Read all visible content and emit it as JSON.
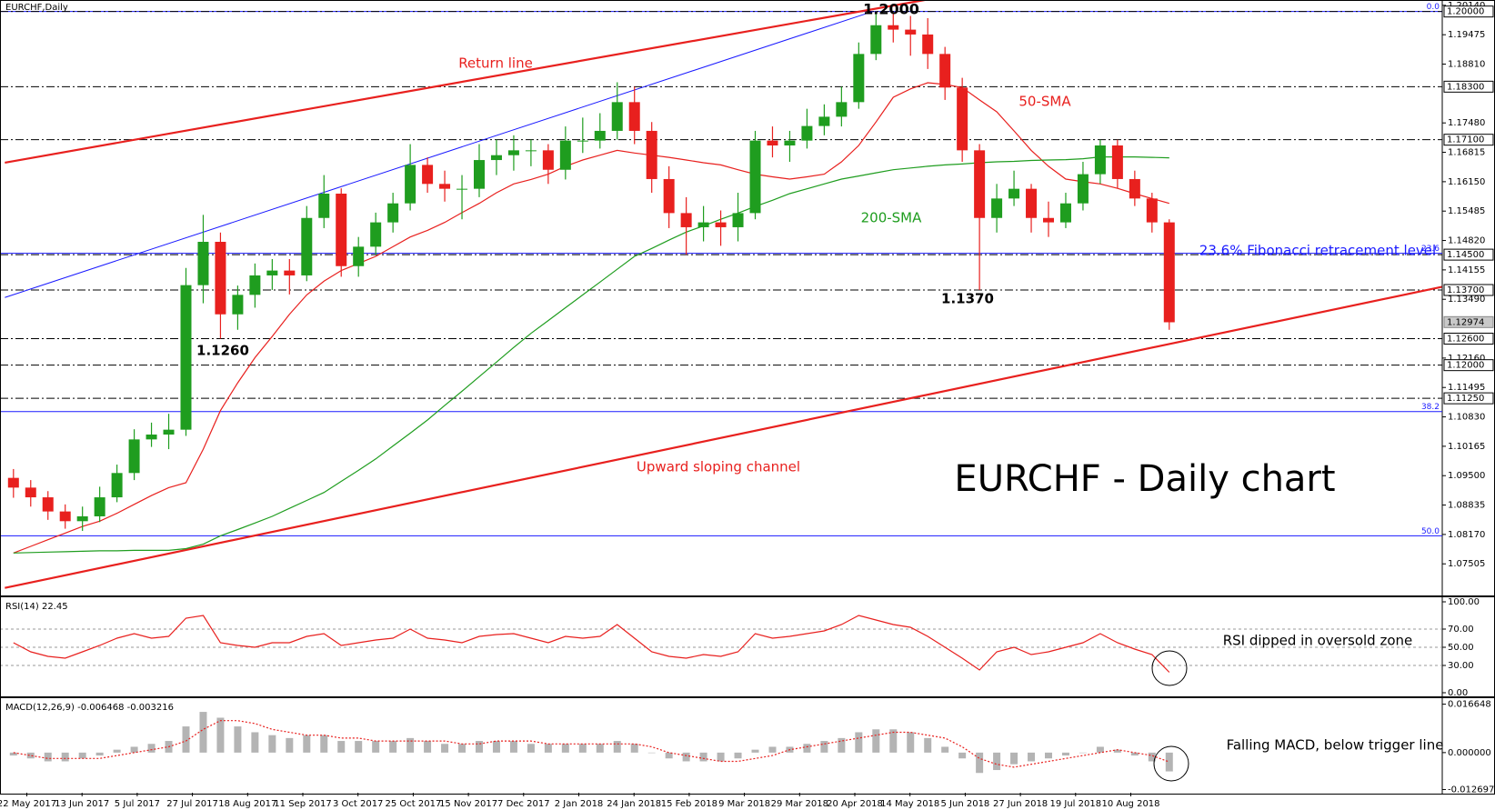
{
  "chart_data": [
    {
      "type": "candlestick",
      "title": "EURCHF,Daily",
      "up_color": "#1f9d1f",
      "down_color": "#e8201e",
      "candles": [
        [
          1.0945,
          1.0965,
          1.09,
          1.0923
        ],
        [
          1.0923,
          1.094,
          1.088,
          1.0901
        ],
        [
          1.0901,
          1.0915,
          1.085,
          1.0869
        ],
        [
          1.0869,
          1.0885,
          1.083,
          1.0847
        ],
        [
          1.0847,
          1.088,
          1.0825,
          1.0858
        ],
        [
          1.0858,
          1.0925,
          1.0845,
          1.0901
        ],
        [
          1.0901,
          1.0975,
          1.089,
          1.0956
        ],
        [
          1.0956,
          1.1055,
          1.094,
          1.1032
        ],
        [
          1.1032,
          1.107,
          1.1015,
          1.1043
        ],
        [
          1.1043,
          1.109,
          1.101,
          1.1054
        ],
        [
          1.1054,
          1.142,
          1.104,
          1.1381
        ],
        [
          1.1381,
          1.154,
          1.134,
          1.1479
        ],
        [
          1.1479,
          1.15,
          1.126,
          1.1315
        ],
        [
          1.1315,
          1.138,
          1.128,
          1.1359
        ],
        [
          1.1359,
          1.143,
          1.133,
          1.1403
        ],
        [
          1.1403,
          1.144,
          1.137,
          1.1414
        ],
        [
          1.1414,
          1.144,
          1.136,
          1.1403
        ],
        [
          1.1403,
          1.156,
          1.139,
          1.1533
        ],
        [
          1.1533,
          1.163,
          1.151,
          1.1588
        ],
        [
          1.1588,
          1.16,
          1.14,
          1.1424
        ],
        [
          1.1424,
          1.149,
          1.14,
          1.1468
        ],
        [
          1.1468,
          1.1545,
          1.145,
          1.1523
        ],
        [
          1.1523,
          1.159,
          1.15,
          1.1566
        ],
        [
          1.1566,
          1.17,
          1.155,
          1.1653
        ],
        [
          1.1653,
          1.167,
          1.159,
          1.161
        ],
        [
          1.161,
          1.164,
          1.157,
          1.1599
        ],
        [
          1.1599,
          1.163,
          1.153,
          1.1599
        ],
        [
          1.1599,
          1.17,
          1.158,
          1.1664
        ],
        [
          1.1664,
          1.171,
          1.163,
          1.1675
        ],
        [
          1.1675,
          1.172,
          1.164,
          1.1686
        ],
        [
          1.1686,
          1.171,
          1.165,
          1.1686
        ],
        [
          1.1686,
          1.17,
          1.161,
          1.1642
        ],
        [
          1.1642,
          1.174,
          1.162,
          1.1708
        ],
        [
          1.1708,
          1.176,
          1.168,
          1.1708
        ],
        [
          1.1708,
          1.177,
          1.169,
          1.173
        ],
        [
          1.173,
          1.184,
          1.171,
          1.1795
        ],
        [
          1.1795,
          1.183,
          1.17,
          1.173
        ],
        [
          1.173,
          1.175,
          1.159,
          1.1621
        ],
        [
          1.1621,
          1.165,
          1.151,
          1.1544
        ],
        [
          1.1544,
          1.158,
          1.145,
          1.1512
        ],
        [
          1.1512,
          1.156,
          1.148,
          1.1523
        ],
        [
          1.1523,
          1.155,
          1.147,
          1.1512
        ],
        [
          1.1512,
          1.159,
          1.148,
          1.1544
        ],
        [
          1.1544,
          1.173,
          1.153,
          1.1708
        ],
        [
          1.1708,
          1.174,
          1.167,
          1.1697
        ],
        [
          1.1697,
          1.173,
          1.166,
          1.1708
        ],
        [
          1.1708,
          1.178,
          1.169,
          1.1741
        ],
        [
          1.1741,
          1.179,
          1.172,
          1.1762
        ],
        [
          1.1762,
          1.183,
          1.174,
          1.1795
        ],
        [
          1.1795,
          1.193,
          1.178,
          1.1904
        ],
        [
          1.1904,
          1.2,
          1.189,
          1.1969
        ],
        [
          1.1969,
          1.1995,
          1.193,
          1.1959
        ],
        [
          1.1959,
          1.199,
          1.19,
          1.1948
        ],
        [
          1.1948,
          1.1985,
          1.187,
          1.1904
        ],
        [
          1.1904,
          1.192,
          1.18,
          1.1828
        ],
        [
          1.1828,
          1.185,
          1.166,
          1.1686
        ],
        [
          1.1686,
          1.17,
          1.137,
          1.1533
        ],
        [
          1.1533,
          1.161,
          1.15,
          1.1577
        ],
        [
          1.1577,
          1.164,
          1.156,
          1.1599
        ],
        [
          1.1599,
          1.161,
          1.15,
          1.1533
        ],
        [
          1.1533,
          1.157,
          1.149,
          1.1523
        ],
        [
          1.1523,
          1.159,
          1.151,
          1.1566
        ],
        [
          1.1566,
          1.166,
          1.155,
          1.1632
        ],
        [
          1.1632,
          1.171,
          1.161,
          1.1697
        ],
        [
          1.1697,
          1.171,
          1.16,
          1.1621
        ],
        [
          1.1621,
          1.164,
          1.156,
          1.1577
        ],
        [
          1.1577,
          1.159,
          1.15,
          1.1523
        ],
        [
          1.1523,
          1.153,
          1.128,
          1.1297
        ]
      ],
      "series": [
        {
          "name": "50-SMA",
          "color": "#e8201e",
          "values": [
            1.0775,
            1.079,
            1.0805,
            1.082,
            1.0835,
            1.0847,
            1.0865,
            1.0885,
            1.0905,
            1.0923,
            1.0934,
            1.101,
            1.1097,
            1.116,
            1.1217,
            1.1265,
            1.1315,
            1.1359,
            1.139,
            1.1414,
            1.143,
            1.1446,
            1.1468,
            1.149,
            1.1505,
            1.1523,
            1.1545,
            1.1566,
            1.159,
            1.161,
            1.162,
            1.1632,
            1.165,
            1.1664,
            1.1675,
            1.1686,
            1.168,
            1.1675,
            1.167,
            1.1664,
            1.1658,
            1.1653,
            1.1642,
            1.1632,
            1.1626,
            1.1621,
            1.1626,
            1.1632,
            1.166,
            1.1697,
            1.175,
            1.1806,
            1.1825,
            1.1839,
            1.1835,
            1.1828,
            1.18,
            1.1773,
            1.173,
            1.1686,
            1.165,
            1.1621,
            1.1615,
            1.161,
            1.16,
            1.1588,
            1.1577,
            1.1566
          ]
        },
        {
          "name": "200-SMA",
          "color": "#1f9d1f",
          "values": [
            1.0775,
            1.0776,
            1.0777,
            1.0778,
            1.0779,
            1.078,
            1.078,
            1.0781,
            1.0781,
            1.0781,
            1.0785,
            1.0795,
            1.0814,
            1.0828,
            1.0843,
            1.0858,
            1.0876,
            1.0894,
            1.0912,
            1.0937,
            1.0962,
            1.0988,
            1.1017,
            1.1046,
            1.1076,
            1.1109,
            1.1141,
            1.1174,
            1.1207,
            1.124,
            1.1272,
            1.1301,
            1.133,
            1.1359,
            1.1388,
            1.1417,
            1.1446,
            1.1464,
            1.1483,
            1.1501,
            1.1515,
            1.153,
            1.1544,
            1.1559,
            1.1573,
            1.1588,
            1.1599,
            1.161,
            1.1621,
            1.1628,
            1.1635,
            1.1642,
            1.1646,
            1.165,
            1.1653,
            1.1655,
            1.1658,
            1.166,
            1.1661,
            1.1663,
            1.1664,
            1.1665,
            1.1667,
            1.1671,
            1.1671,
            1.1671,
            1.167,
            1.1669
          ]
        }
      ],
      "ylim": [
        1.0679,
        1.2024
      ],
      "yticks": [
        {
          "value": 1.2014,
          "label": "1.20140"
        },
        {
          "value": 1.19475,
          "label": "1.19475"
        },
        {
          "value": 1.1881,
          "label": "1.18810"
        },
        {
          "value": 1.1748,
          "label": "1.17480"
        },
        {
          "value": 1.16815,
          "label": "1.16815"
        },
        {
          "value": 1.1615,
          "label": "1.16150"
        },
        {
          "value": 1.15485,
          "label": "1.15485"
        },
        {
          "value": 1.1482,
          "label": "1.14820"
        },
        {
          "value": 1.14155,
          "label": "1.14155"
        },
        {
          "value": 1.1349,
          "label": "1.13490"
        },
        {
          "value": 1.1216,
          "label": "1.12160"
        },
        {
          "value": 1.11495,
          "label": "1.11495"
        },
        {
          "value": 1.1083,
          "label": "1.10830"
        },
        {
          "value": 1.10165,
          "label": "1.10165"
        },
        {
          "value": 1.095,
          "label": "1.09500"
        },
        {
          "value": 1.08835,
          "label": "1.08835"
        },
        {
          "value": 1.0817,
          "label": "1.08170"
        },
        {
          "value": 1.07505,
          "label": "1.07505"
        }
      ],
      "levels": [
        {
          "value": 1.2,
          "label": "1.20000"
        },
        {
          "value": 1.183,
          "label": "1.18300"
        },
        {
          "value": 1.171,
          "label": "1.17100"
        },
        {
          "value": 1.145,
          "label": "1.14500"
        },
        {
          "value": 1.137,
          "label": "1.13700"
        },
        {
          "value": 1.126,
          "label": "1.12600"
        },
        {
          "value": 1.12,
          "label": "1.12000"
        },
        {
          "value": 1.1125,
          "label": "1.11250"
        }
      ],
      "current_price": {
        "value": 1.12974,
        "label": "1.12974"
      },
      "fibonacci": [
        {
          "label": "0.0",
          "value": 1.2
        },
        {
          "label": "23.6",
          "value": 1.1453
        },
        {
          "label": "38.2",
          "value": 1.1095
        },
        {
          "label": "50.0",
          "value": 1.0814
        }
      ],
      "fib_color": "#1a1aff",
      "trendlines": [
        {
          "color": "#e8201e",
          "x": [
            -0.5,
            53.1
          ],
          "y": [
            1.1658,
            1.2028
          ]
        },
        {
          "color": "#e8201e",
          "x": [
            -0.5,
            82.8
          ],
          "y": [
            1.0696,
            1.1377
          ]
        },
        {
          "color": "#1a1aff",
          "x": [
            -0.5,
            49.8
          ],
          "y": [
            1.1353,
            1.2
          ]
        }
      ],
      "annotations": [
        {
          "text": "Return line",
          "color": "#e8201e"
        },
        {
          "text": "1.2000",
          "color": "#000000"
        },
        {
          "text": "50-SMA",
          "color": "#e8201e"
        },
        {
          "text": "200-SMA",
          "color": "#1f9d1f"
        },
        {
          "text": "23.6% Fibonacci retracement level",
          "color": "#1a1aff"
        },
        {
          "text": "1.1370",
          "color": "#000000"
        },
        {
          "text": "1.1260",
          "color": "#000000"
        },
        {
          "text": "Upward sloping channel",
          "color": "#e8201e"
        },
        {
          "text": "EURCHF - Daily chart",
          "color": "#000000"
        }
      ],
      "x_labels": [
        "22 May 2017",
        "13 Jun 2017",
        "5 Jul 2017",
        "27 Jul 2017",
        "18 Aug 2017",
        "11 Sep 2017",
        "3 Oct 2017",
        "25 Oct 2017",
        "15 Nov 2017",
        "7 Dec 2017",
        "2 Jan 2018",
        "24 Jan 2018",
        "15 Feb 2018",
        "9 Mar 2018",
        "29 Mar 2018",
        "20 Apr 2018",
        "14 May 2018",
        "5 Jun 2018",
        "27 Jun 2018",
        "19 Jul 2018",
        "10 Aug 2018"
      ]
    },
    {
      "type": "line",
      "title": "RSI(14) 22.45",
      "color": "#e8201e",
      "values": [
        55,
        45,
        40,
        38,
        45,
        52,
        60,
        65,
        60,
        62,
        82,
        85,
        55,
        52,
        50,
        55,
        55,
        62,
        65,
        52,
        55,
        58,
        60,
        70,
        60,
        58,
        55,
        62,
        64,
        65,
        60,
        55,
        62,
        60,
        62,
        75,
        60,
        45,
        40,
        38,
        42,
        40,
        45,
        65,
        60,
        62,
        65,
        68,
        75,
        85,
        80,
        75,
        72,
        62,
        50,
        38,
        25,
        45,
        50,
        42,
        45,
        50,
        55,
        65,
        55,
        48,
        42,
        22.45
      ],
      "ylim": [
        -4,
        103
      ],
      "yticks": [
        {
          "value": 100,
          "label": "100.00"
        },
        {
          "value": 70,
          "label": "70.00"
        },
        {
          "value": 50,
          "label": "50.00"
        },
        {
          "value": 30,
          "label": "30.00"
        },
        {
          "value": 0,
          "label": "0.00"
        }
      ],
      "dashed_levels": [
        70,
        50,
        30
      ],
      "annotation": "RSI dipped in oversold zone"
    },
    {
      "type": "bar",
      "title": "MACD(12,26,9) -0.006468 -0.003216",
      "color": "#b4b4b4",
      "values": [
        -0.001,
        -0.002,
        -0.003,
        -0.003,
        -0.002,
        -0.001,
        0.001,
        0.002,
        0.003,
        0.004,
        0.009,
        0.014,
        0.012,
        0.009,
        0.007,
        0.006,
        0.005,
        0.006,
        0.006,
        0.004,
        0.004,
        0.004,
        0.004,
        0.005,
        0.004,
        0.003,
        0.003,
        0.004,
        0.004,
        0.004,
        0.003,
        0.003,
        0.003,
        0.003,
        0.003,
        0.004,
        0.003,
        0,
        -0.002,
        -0.003,
        -0.003,
        -0.003,
        -0.002,
        0.001,
        0.002,
        0.002,
        0.003,
        0.004,
        0.005,
        0.007,
        0.008,
        0.008,
        0.007,
        0.005,
        0.002,
        -0.002,
        -0.007,
        -0.006,
        -0.004,
        -0.003,
        -0.002,
        -0.001,
        0,
        0.002,
        0.001,
        -0.001,
        -0.003,
        -0.006468
      ],
      "signal": {
        "color": "#e8201e",
        "values": [
          0,
          -0.001,
          -0.002,
          -0.002,
          -0.002,
          -0.002,
          -0.001,
          0,
          0.001,
          0.002,
          0.004,
          0.008,
          0.011,
          0.011,
          0.01,
          0.008,
          0.007,
          0.006,
          0.006,
          0.005,
          0.005,
          0.004,
          0.004,
          0.004,
          0.004,
          0.004,
          0.003,
          0.003,
          0.004,
          0.004,
          0.004,
          0.003,
          0.003,
          0.003,
          0.003,
          0.003,
          0.003,
          0.002,
          0,
          -0.001,
          -0.002,
          -0.003,
          -0.003,
          -0.002,
          -0.001,
          0.001,
          0.002,
          0.003,
          0.004,
          0.005,
          0.006,
          0.007,
          0.007,
          0.006,
          0.005,
          0.002,
          -0.002,
          -0.004,
          -0.005,
          -0.004,
          -0.003,
          -0.002,
          -0.001,
          0,
          0.001,
          0,
          -0.001,
          -0.003216
        ]
      },
      "ylim": [
        -0.0138,
        0.0184
      ],
      "yticks": [
        {
          "value": 0.016648,
          "label": "0.016648"
        },
        {
          "value": 0,
          "label": "0.000000"
        },
        {
          "value": -0.012697,
          "label": "-0.012697"
        }
      ],
      "annotation": "Falling MACD, below trigger line"
    }
  ]
}
